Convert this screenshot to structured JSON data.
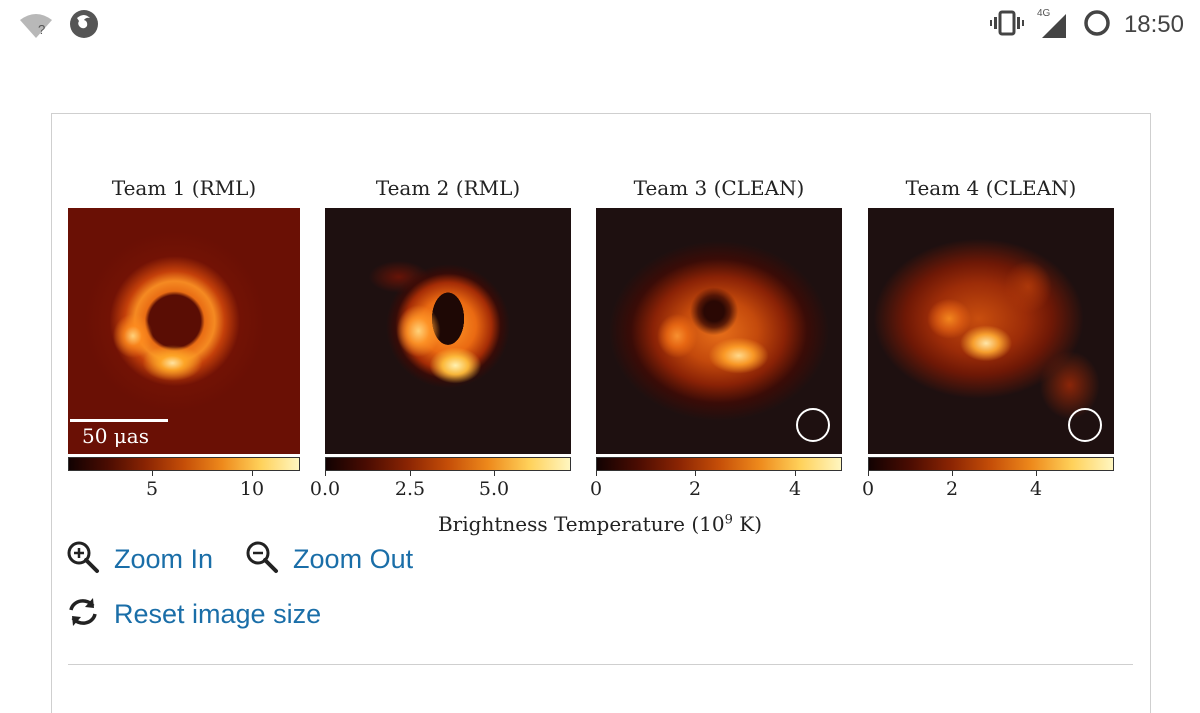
{
  "status_bar": {
    "time": "18:50",
    "network": "4G",
    "wifi_badge": "?",
    "icons": [
      "wifi-question-icon",
      "firefox-icon",
      "vibrate-icon",
      "signal-icon",
      "circle-icon"
    ]
  },
  "figure": {
    "panels": [
      {
        "title": "Team 1 (RML)",
        "ticks": [
          "5",
          "10"
        ]
      },
      {
        "title": "Team 2 (RML)",
        "ticks": [
          "0.0",
          "2.5",
          "5.0"
        ]
      },
      {
        "title": "Team 3 (CLEAN)",
        "ticks": [
          "0",
          "2",
          "4"
        ]
      },
      {
        "title": "Team 4 (CLEAN)",
        "ticks": [
          "0",
          "2",
          "4"
        ]
      }
    ],
    "scale_label": "50 μas",
    "xlabel_main": "Brightness Temperature (10",
    "xlabel_exp": "9",
    "xlabel_tail": " K)",
    "colormap": [
      "#120202",
      "#4a0c02",
      "#8a2403",
      "#c54e08",
      "#ee8a1c",
      "#ffd15a",
      "#fff6c0"
    ]
  },
  "actions": {
    "zoom_in": "Zoom In",
    "zoom_out": "Zoom Out",
    "reset": "Reset image size",
    "link_color": "#1a6ea8"
  }
}
